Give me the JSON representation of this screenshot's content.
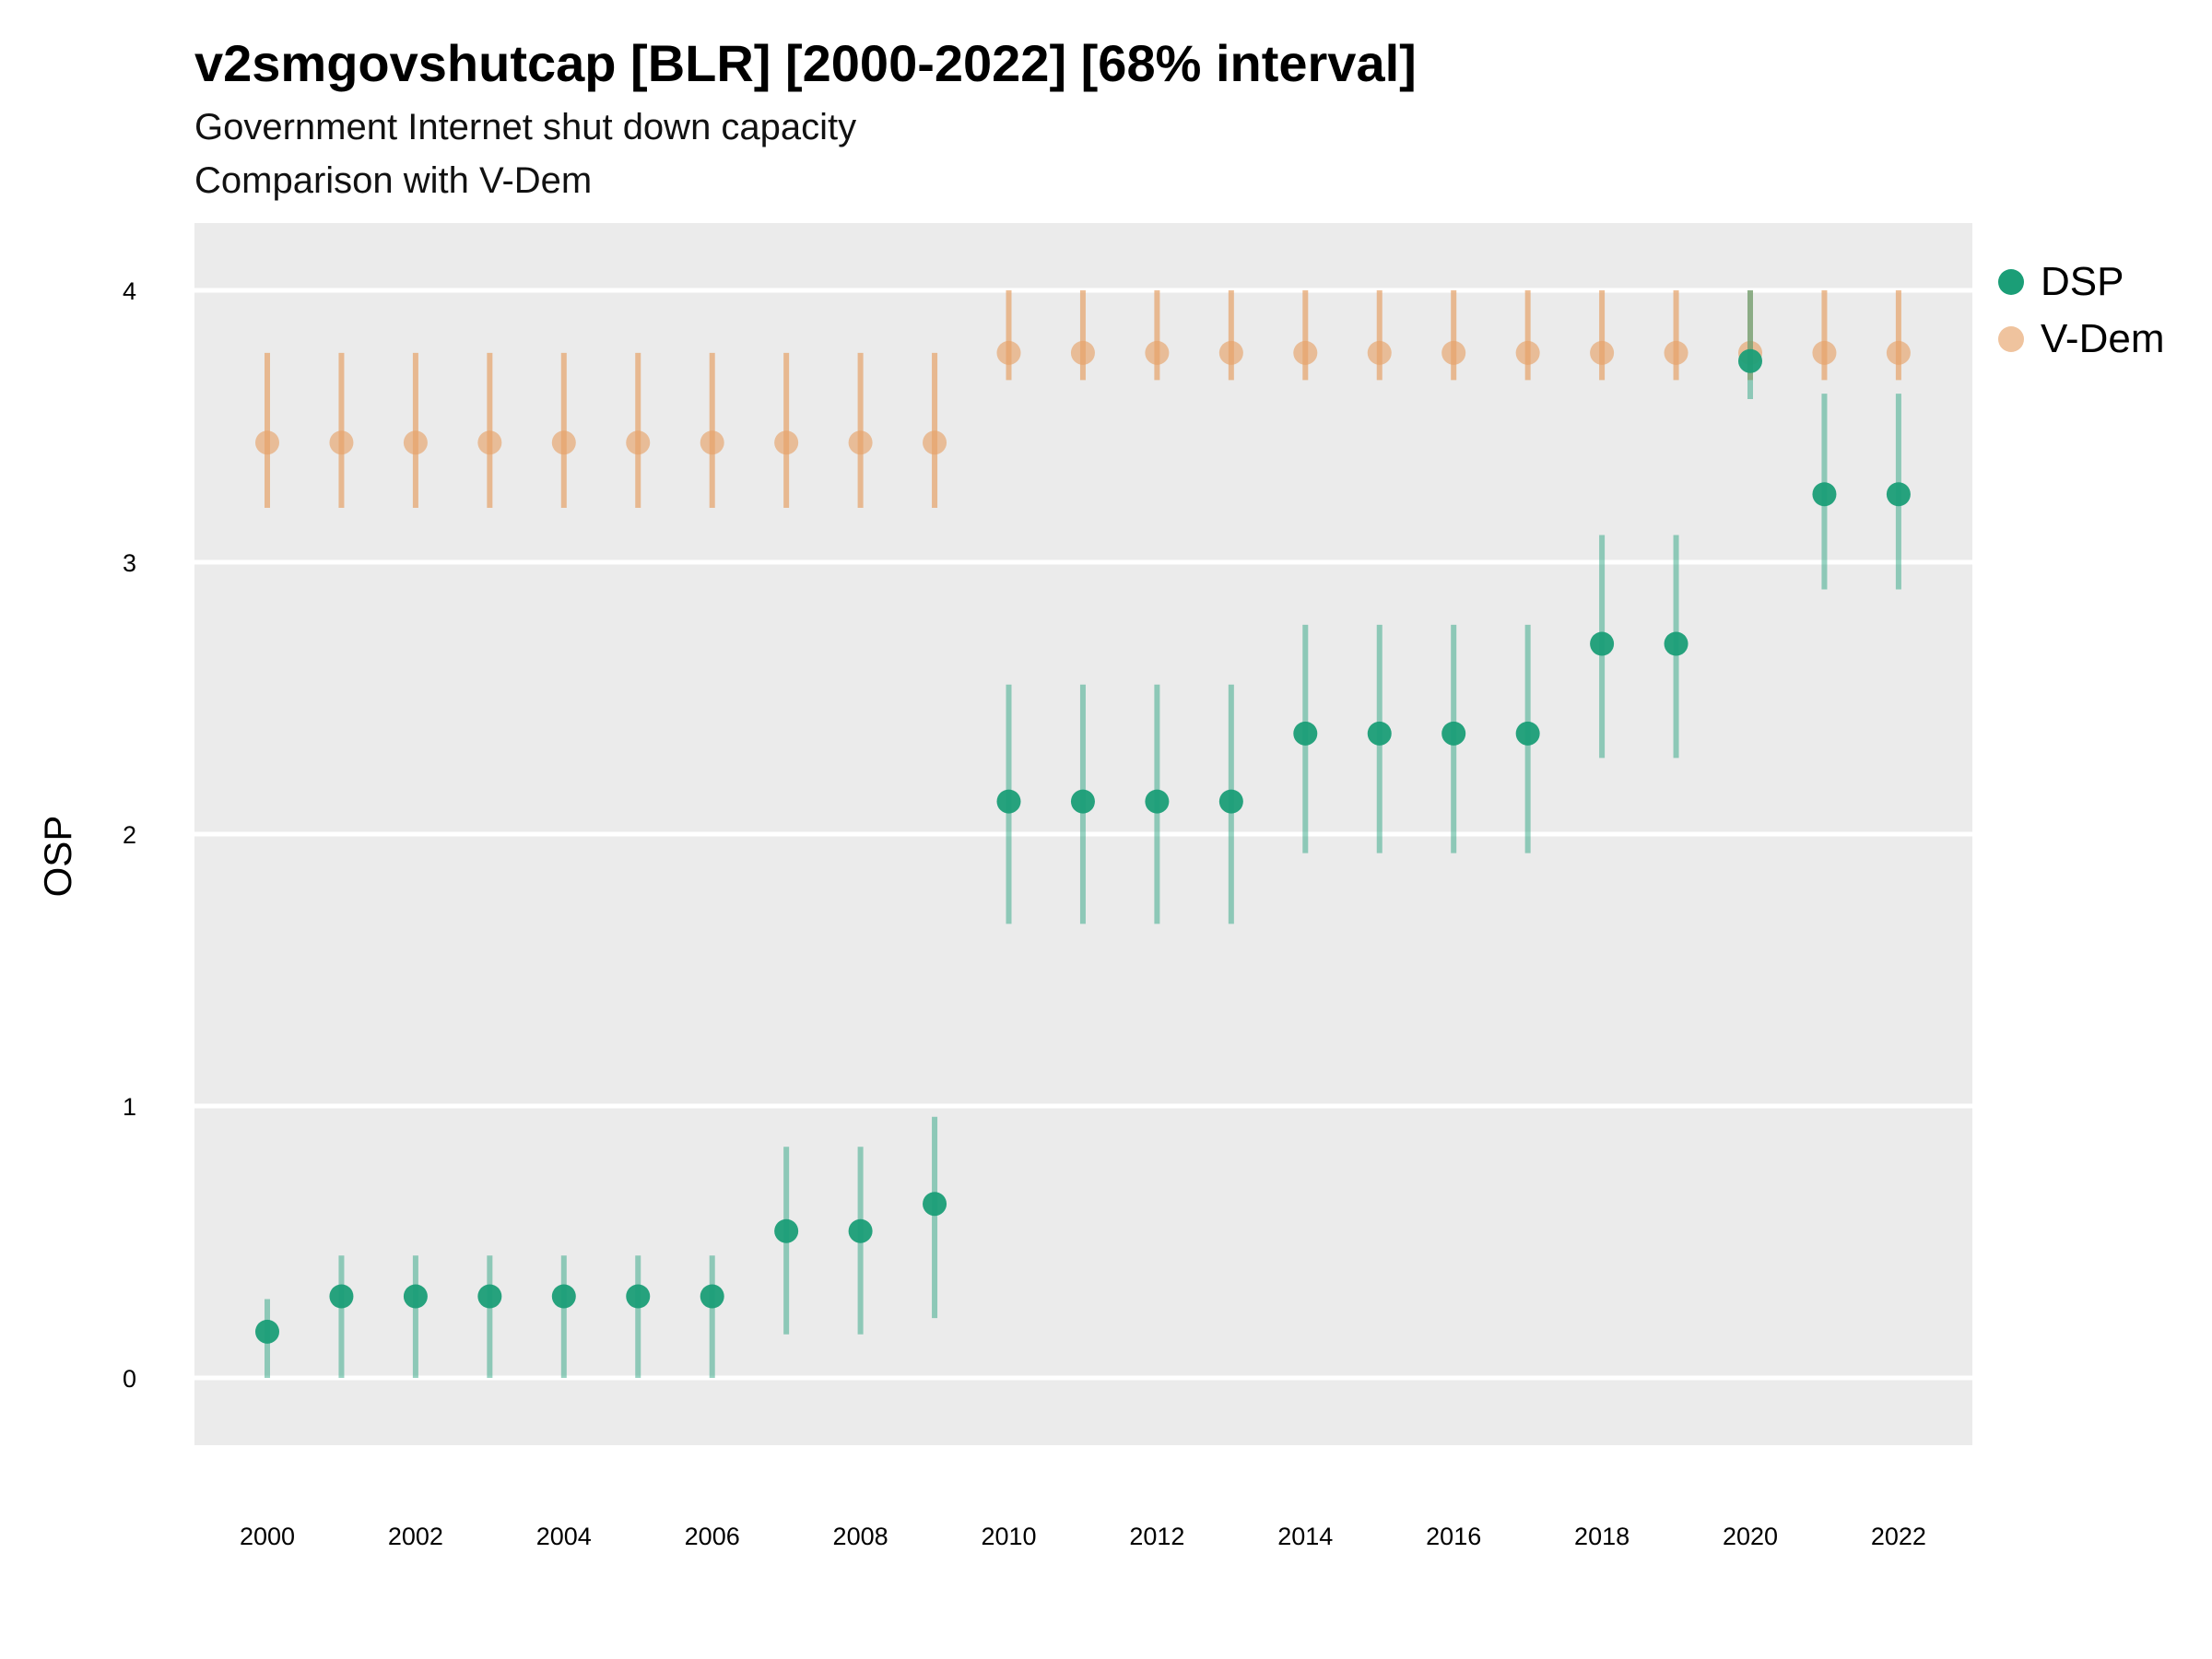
{
  "chart_data": {
    "type": "scatter",
    "title": "v2smgovshutcap [BLR] [2000-2022] [68% interval]",
    "subtitle": [
      "Government Internet shut down capacity",
      "Comparison with V-Dem"
    ],
    "xlabel": "",
    "ylabel": "OSP",
    "x": [
      2000,
      2001,
      2002,
      2003,
      2004,
      2005,
      2006,
      2007,
      2008,
      2009,
      2010,
      2011,
      2012,
      2013,
      2014,
      2015,
      2016,
      2017,
      2018,
      2019,
      2020,
      2021,
      2022
    ],
    "x_ticks": [
      2000,
      2002,
      2004,
      2006,
      2008,
      2010,
      2012,
      2014,
      2016,
      2018,
      2020,
      2022
    ],
    "y_ticks": [
      0,
      1,
      2,
      3,
      4
    ],
    "xlim": [
      1999,
      2023
    ],
    "ylim": [
      -0.25,
      4.25
    ],
    "grid": true,
    "legend_position": "right",
    "series": [
      {
        "name": "V-Dem",
        "color": "#E6A36A",
        "values": [
          3.44,
          3.44,
          3.44,
          3.44,
          3.44,
          3.44,
          3.44,
          3.44,
          3.44,
          3.44,
          3.77,
          3.77,
          3.77,
          3.77,
          3.77,
          3.77,
          3.77,
          3.77,
          3.77,
          3.77,
          3.77,
          3.77,
          3.77
        ],
        "lower": [
          3.2,
          3.2,
          3.2,
          3.2,
          3.2,
          3.2,
          3.2,
          3.2,
          3.2,
          3.2,
          3.67,
          3.67,
          3.67,
          3.67,
          3.67,
          3.67,
          3.67,
          3.67,
          3.67,
          3.67,
          3.67,
          3.67,
          3.67
        ],
        "upper": [
          3.77,
          3.77,
          3.77,
          3.77,
          3.77,
          3.77,
          3.77,
          3.77,
          3.77,
          3.77,
          4.0,
          4.0,
          4.0,
          4.0,
          4.0,
          4.0,
          4.0,
          4.0,
          4.0,
          4.0,
          4.0,
          4.0,
          4.0
        ]
      },
      {
        "name": "DSP",
        "color": "#1B9E77",
        "values": [
          0.17,
          0.3,
          0.3,
          0.3,
          0.3,
          0.3,
          0.3,
          0.54,
          0.54,
          0.64,
          2.12,
          2.12,
          2.12,
          2.12,
          2.37,
          2.37,
          2.37,
          2.37,
          2.7,
          2.7,
          3.74,
          3.25,
          3.25
        ],
        "lower": [
          0.0,
          0.0,
          0.0,
          0.0,
          0.0,
          0.0,
          0.0,
          0.16,
          0.16,
          0.22,
          1.67,
          1.67,
          1.67,
          1.67,
          1.93,
          1.93,
          1.93,
          1.93,
          2.28,
          2.28,
          3.6,
          2.9,
          2.9
        ],
        "upper": [
          0.29,
          0.45,
          0.45,
          0.45,
          0.45,
          0.45,
          0.45,
          0.85,
          0.85,
          0.96,
          2.55,
          2.55,
          2.55,
          2.55,
          2.77,
          2.77,
          2.77,
          2.77,
          3.1,
          3.1,
          4.0,
          3.62,
          3.62
        ]
      }
    ]
  }
}
